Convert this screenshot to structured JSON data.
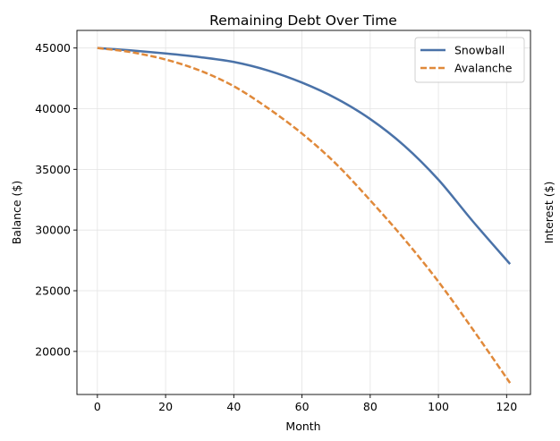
{
  "chart_data": {
    "type": "line",
    "title": "Remaining Debt Over Time",
    "xlabel": "Month",
    "ylabel": "Balance ($)",
    "y2label": "Interest ($)",
    "xlim": [
      -6,
      127
    ],
    "ylim": [
      16450,
      46450
    ],
    "xticks": [
      0,
      20,
      40,
      60,
      80,
      100,
      120
    ],
    "yticks": [
      20000,
      25000,
      30000,
      35000,
      40000,
      45000
    ],
    "grid": true,
    "legend_position": "top-right",
    "series": [
      {
        "name": "Snowball",
        "color": "#4a72a8",
        "style": "solid",
        "x": [
          0,
          10,
          20,
          30,
          40,
          50,
          60,
          70,
          80,
          90,
          100,
          110,
          121
        ],
        "values": [
          45000,
          44800,
          44550,
          44250,
          43850,
          43150,
          42150,
          40850,
          39150,
          36950,
          34150,
          30750,
          27200
        ]
      },
      {
        "name": "Avalanche",
        "color": "#e0893a",
        "style": "dashed",
        "x": [
          0,
          10,
          20,
          30,
          40,
          50,
          60,
          70,
          80,
          90,
          100,
          110,
          121
        ],
        "values": [
          45000,
          44650,
          44050,
          43150,
          41850,
          40050,
          37950,
          35450,
          32450,
          29250,
          25750,
          21850,
          17400
        ]
      }
    ]
  }
}
